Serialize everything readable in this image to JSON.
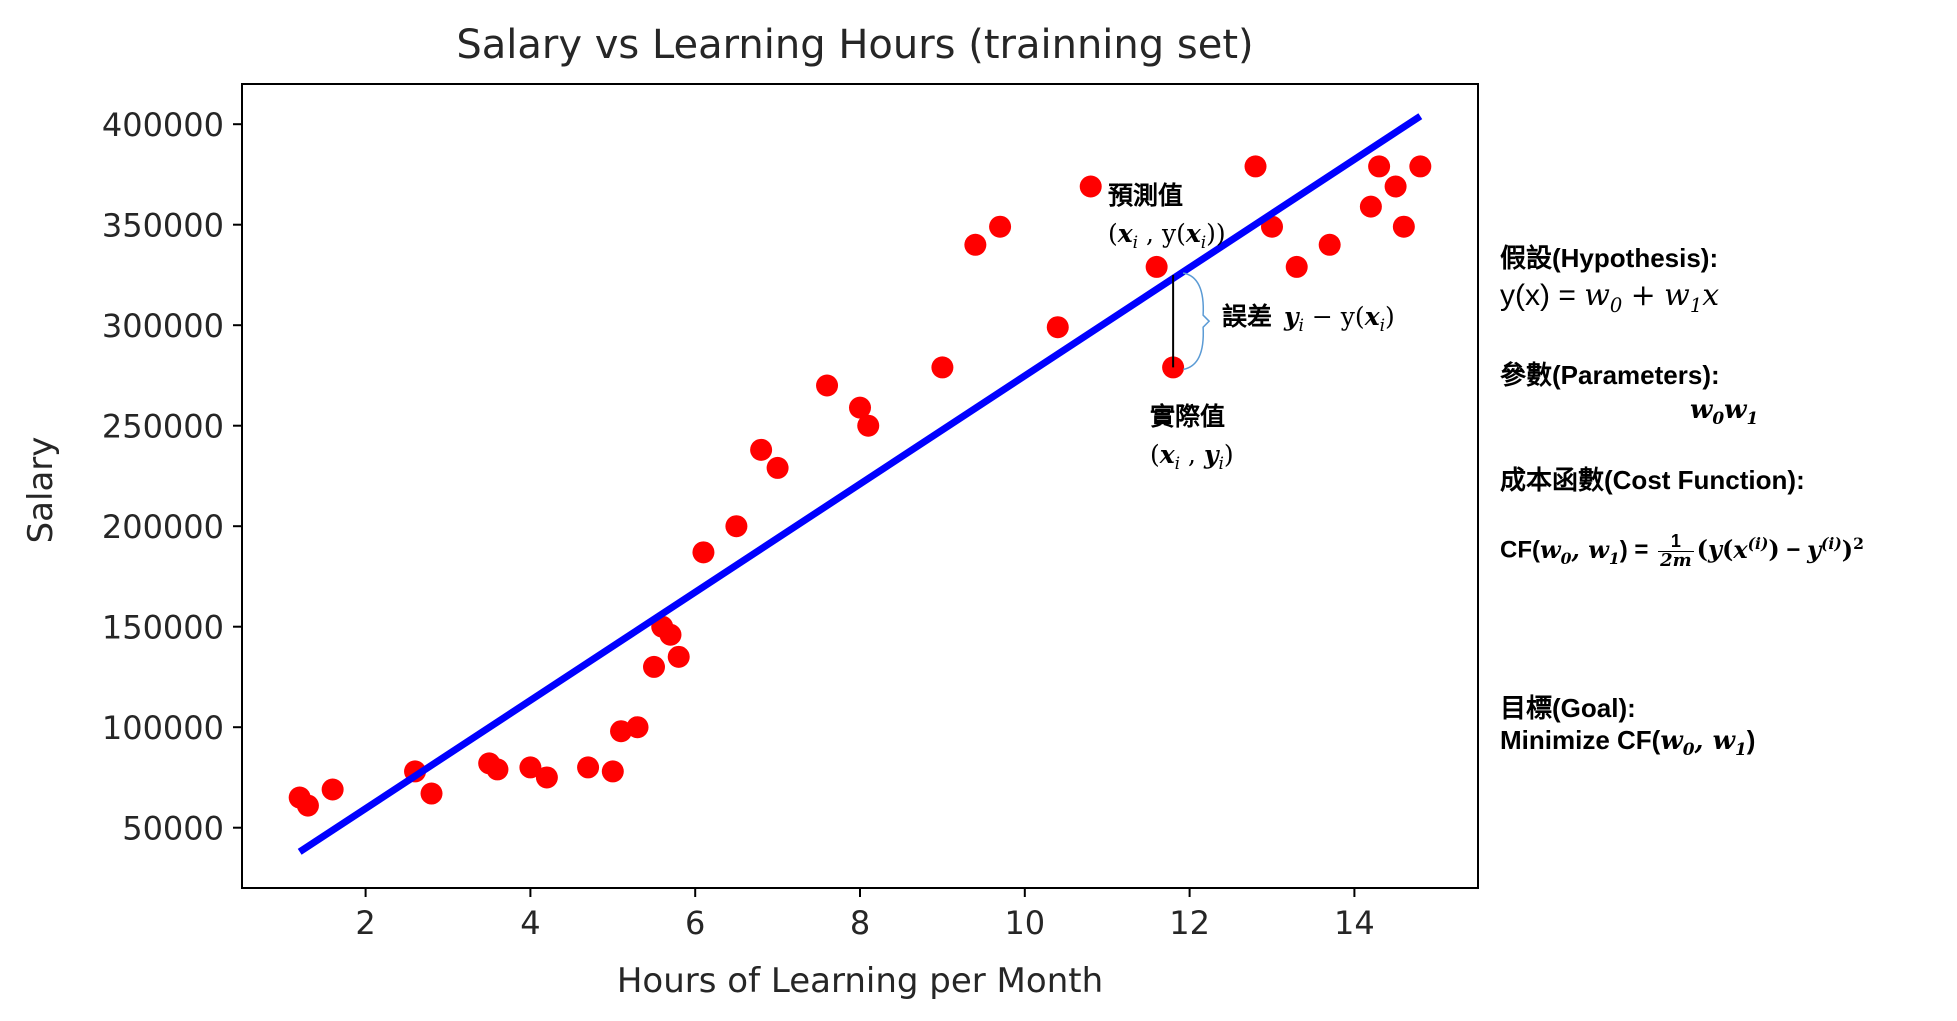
{
  "chart_data": {
    "type": "scatter",
    "title": "Salary vs Learning Hours (trainning set)",
    "xlabel": "Hours of Learning per Month",
    "ylabel": "Salary",
    "xlim": [
      0.5,
      15.5
    ],
    "ylim": [
      20000,
      420000
    ],
    "xticks": [
      2,
      4,
      6,
      8,
      10,
      12,
      14
    ],
    "yticks": [
      50000,
      100000,
      150000,
      200000,
      250000,
      300000,
      350000,
      400000
    ],
    "xtick_labels": [
      "2",
      "4",
      "6",
      "8",
      "10",
      "12",
      "14"
    ],
    "ytick_labels": [
      "50000",
      "100000",
      "150000",
      "200000",
      "250000",
      "300000",
      "350000",
      "400000"
    ],
    "grid": false,
    "points_color": "#ff0000",
    "line_color": "#0000ff",
    "points": [
      [
        1.2,
        65000
      ],
      [
        1.3,
        61000
      ],
      [
        1.6,
        69000
      ],
      [
        2.6,
        78000
      ],
      [
        2.8,
        67000
      ],
      [
        3.5,
        82000
      ],
      [
        3.6,
        79000
      ],
      [
        4.0,
        80000
      ],
      [
        4.2,
        75000
      ],
      [
        4.7,
        80000
      ],
      [
        5.0,
        78000
      ],
      [
        5.1,
        98000
      ],
      [
        5.3,
        100000
      ],
      [
        5.5,
        130000
      ],
      [
        5.6,
        150000
      ],
      [
        5.7,
        146000
      ],
      [
        5.8,
        135000
      ],
      [
        6.1,
        187000
      ],
      [
        6.5,
        200000
      ],
      [
        6.8,
        238000
      ],
      [
        7.0,
        229000
      ],
      [
        7.6,
        270000
      ],
      [
        8.0,
        259000
      ],
      [
        8.1,
        250000
      ],
      [
        9.0,
        279000
      ],
      [
        9.4,
        340000
      ],
      [
        9.7,
        349000
      ],
      [
        10.4,
        299000
      ],
      [
        10.8,
        369000
      ],
      [
        11.6,
        329000
      ],
      [
        11.8,
        279000
      ],
      [
        12.8,
        379000
      ],
      [
        13.0,
        349000
      ],
      [
        13.3,
        329000
      ],
      [
        13.7,
        340000
      ],
      [
        14.2,
        359000
      ],
      [
        14.3,
        379000
      ],
      [
        14.5,
        369000
      ],
      [
        14.6,
        349000
      ],
      [
        14.8,
        379000
      ]
    ],
    "regression": {
      "x": [
        1.2,
        14.8
      ],
      "y": [
        38000,
        404000
      ]
    },
    "annotations": {
      "predicted_label": "預測值",
      "error_label": "誤差",
      "actual_label": "實際值",
      "predicted_point": {
        "x": 11.8,
        "y": 325000
      },
      "actual_point": {
        "x": 11.8,
        "y": 279000
      }
    }
  },
  "notes": {
    "hypothesis_label": "假設(Hypothesis):",
    "hypothesis_eq_prefix": "y(x) =",
    "parameters_label": "參數(Parameters):",
    "cost_label": "成本函數(Cost Function):",
    "cf_prefix": "CF(",
    "goal_label": "目標(Goal):",
    "goal_text": "Minimize CF("
  }
}
